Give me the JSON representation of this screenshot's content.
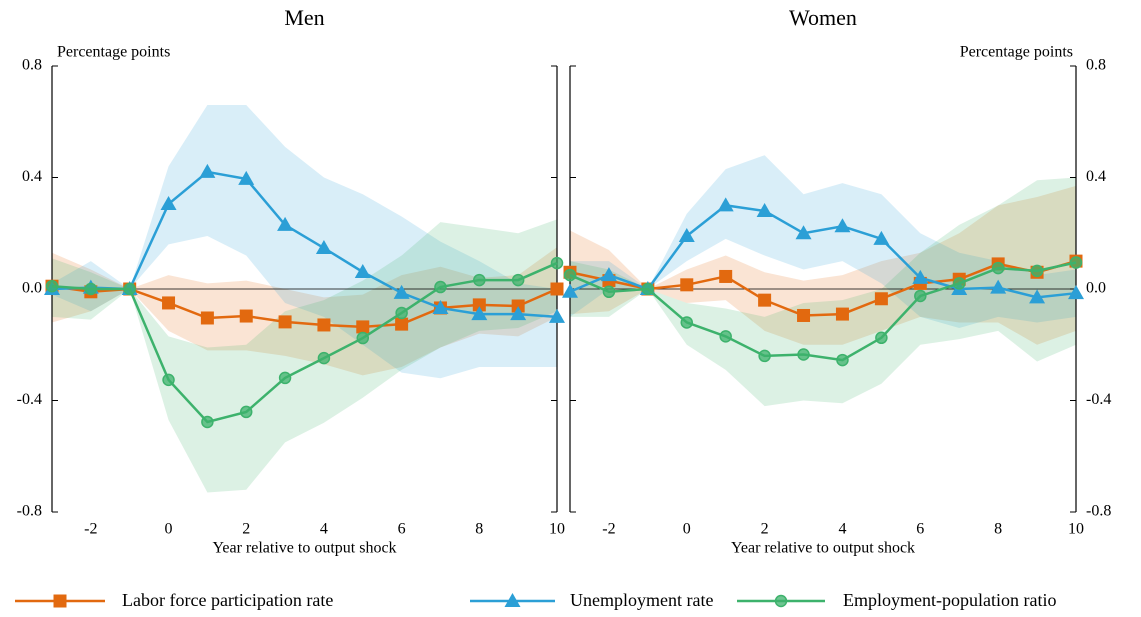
{
  "chart_data": [
    {
      "type": "line",
      "title": "Men",
      "ylabel": "Percentage points",
      "xlabel": "Year relative to output shock",
      "x": [
        -3,
        -2,
        -1,
        0,
        1,
        2,
        3,
        4,
        5,
        6,
        7,
        8,
        9,
        10
      ],
      "xlim": [
        -3,
        10
      ],
      "ylim": [
        -0.8,
        0.8
      ],
      "xticks": [
        -2,
        0,
        2,
        4,
        6,
        8,
        10
      ],
      "yticks": [
        0.8,
        0.4,
        {
          "value": 0,
          "label": "0.0"
        },
        -0.4,
        -0.8
      ],
      "zero_line": true,
      "legend": "bottom",
      "series": [
        {
          "name": "Labor force participation rate",
          "color": "#e2690f",
          "marker": "square",
          "values": [
            0.01,
            -0.01,
            0,
            -0.05,
            -0.104,
            -0.097,
            -0.118,
            -0.129,
            -0.136,
            -0.126,
            -0.068,
            -0.057,
            -0.061,
            0.0
          ],
          "upper": [
            0.13,
            0.07,
            0,
            0.05,
            0.02,
            0.03,
            0.0,
            -0.03,
            -0.02,
            0.05,
            0.08,
            0.04,
            0.05,
            0.15
          ],
          "lower": [
            -0.12,
            -0.08,
            0,
            -0.15,
            -0.22,
            -0.22,
            -0.24,
            -0.27,
            -0.31,
            -0.28,
            -0.21,
            -0.16,
            -0.17,
            -0.1
          ]
        },
        {
          "name": "Unemployment rate",
          "color": "#2b9fd6",
          "marker": "triangle",
          "values": [
            0.0,
            0.005,
            0,
            0.305,
            0.42,
            0.395,
            0.23,
            0.147,
            0.061,
            -0.014,
            -0.068,
            -0.09,
            -0.09,
            -0.1
          ],
          "upper": [
            0.02,
            0.1,
            0,
            0.44,
            0.66,
            0.66,
            0.51,
            0.4,
            0.34,
            0.26,
            0.17,
            0.1,
            0.02,
            0.0
          ],
          "lower": [
            -0.02,
            -0.08,
            0,
            0.16,
            0.19,
            0.12,
            -0.05,
            -0.1,
            -0.2,
            -0.3,
            -0.32,
            -0.28,
            -0.28,
            -0.28
          ]
        },
        {
          "name": "Employment-population ratio",
          "color": "#3db26c",
          "marker": "circle",
          "values": [
            0.01,
            0.0,
            0,
            -0.326,
            -0.477,
            -0.441,
            -0.319,
            -0.248,
            -0.176,
            -0.086,
            0.007,
            0.032,
            0.032,
            0.093
          ],
          "upper": [
            0.11,
            0.06,
            0,
            -0.17,
            -0.21,
            -0.2,
            -0.08,
            -0.04,
            0.03,
            0.12,
            0.24,
            0.22,
            0.2,
            0.25
          ],
          "lower": [
            -0.1,
            -0.11,
            0,
            -0.47,
            -0.73,
            -0.72,
            -0.55,
            -0.48,
            -0.39,
            -0.29,
            -0.21,
            -0.15,
            -0.14,
            -0.08
          ]
        }
      ]
    },
    {
      "type": "line",
      "title": "Women",
      "ylabel": "Percentage points",
      "xlabel": "Year relative to output shock",
      "x": [
        -3,
        -2,
        -1,
        0,
        1,
        2,
        3,
        4,
        5,
        6,
        7,
        8,
        9,
        10
      ],
      "xlim": [
        -3,
        10
      ],
      "ylim": [
        -0.8,
        0.8
      ],
      "xticks": [
        -2,
        0,
        2,
        4,
        6,
        8,
        10
      ],
      "yticks": [
        0.8,
        0.4,
        {
          "value": 0,
          "label": "0.0"
        },
        -0.4,
        -0.8
      ],
      "zero_line": true,
      "series": [
        {
          "color": "#e2690f",
          "marker": "square",
          "values": [
            0.06,
            0.03,
            0,
            0.015,
            0.045,
            -0.04,
            -0.095,
            -0.09,
            -0.035,
            0.02,
            0.035,
            0.09,
            0.06,
            0.1
          ],
          "upper": [
            0.21,
            0.14,
            0,
            0.07,
            0.12,
            0.06,
            0.03,
            0.05,
            0.1,
            0.13,
            0.2,
            0.3,
            0.33,
            0.37
          ],
          "lower": [
            -0.09,
            -0.08,
            0,
            -0.05,
            -0.04,
            -0.15,
            -0.2,
            -0.2,
            -0.15,
            -0.1,
            -0.12,
            -0.12,
            -0.2,
            -0.15
          ]
        },
        {
          "color": "#2b9fd6",
          "marker": "triangle",
          "values": [
            -0.01,
            0.05,
            0,
            0.19,
            0.3,
            0.28,
            0.2,
            0.225,
            0.18,
            0.04,
            0.0,
            0.005,
            -0.03,
            -0.015
          ],
          "upper": [
            0.1,
            0.1,
            0,
            0.27,
            0.43,
            0.48,
            0.34,
            0.38,
            0.34,
            0.2,
            0.13,
            0.1,
            0.05,
            0.07
          ],
          "lower": [
            -0.1,
            0.0,
            0,
            0.1,
            0.18,
            0.12,
            0.07,
            0.1,
            0.02,
            -0.1,
            -0.14,
            -0.1,
            -0.12,
            -0.1
          ]
        },
        {
          "color": "#3db26c",
          "marker": "circle",
          "values": [
            0.05,
            -0.01,
            0,
            -0.12,
            -0.17,
            -0.24,
            -0.235,
            -0.255,
            -0.175,
            -0.025,
            0.02,
            0.075,
            0.065,
            0.095
          ],
          "upper": [
            0.1,
            0.07,
            0,
            -0.05,
            -0.07,
            -0.1,
            -0.05,
            -0.04,
            0.0,
            0.13,
            0.23,
            0.3,
            0.39,
            0.4
          ],
          "lower": [
            -0.1,
            -0.1,
            0,
            -0.2,
            -0.29,
            -0.42,
            -0.4,
            -0.41,
            -0.34,
            -0.2,
            -0.18,
            -0.15,
            -0.26,
            -0.2
          ]
        }
      ]
    }
  ]
}
